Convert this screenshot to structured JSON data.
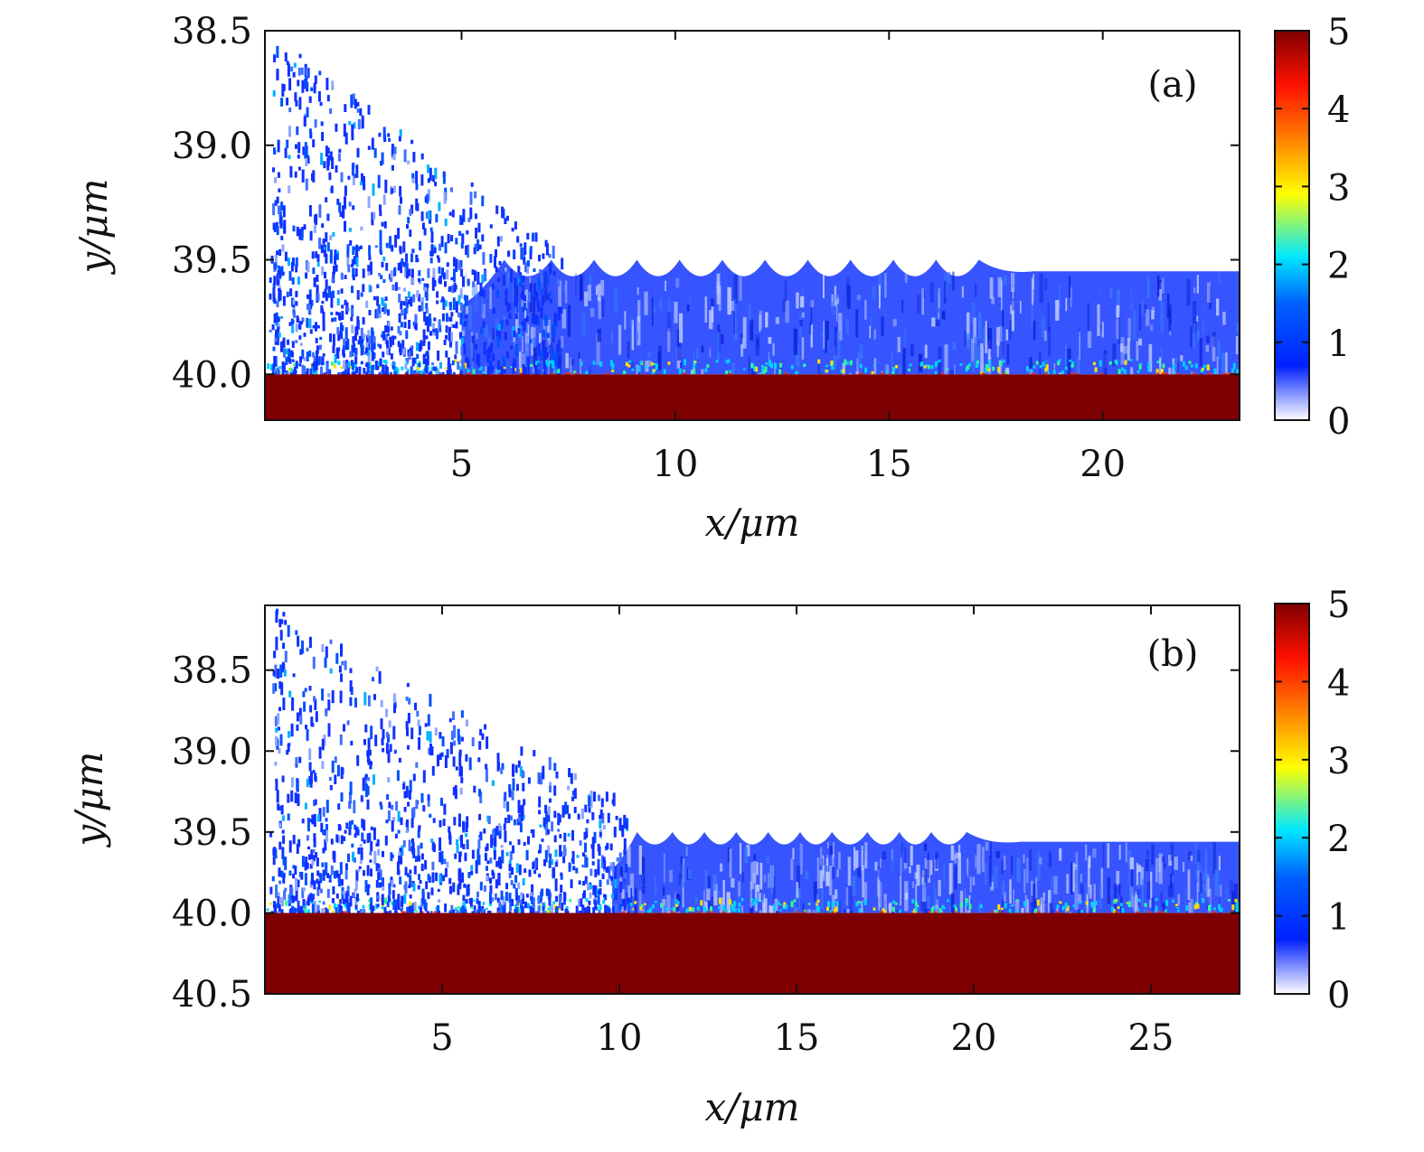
{
  "chart_data": [
    {
      "type": "heatmap",
      "panel_label": "(a)",
      "xlabel": "x/μm",
      "ylabel": "y/μm",
      "xlim": [
        0.4,
        23.2
      ],
      "ylim": [
        38.5,
        40.2
      ],
      "y_inverted": true,
      "x_ticks": [
        "5",
        "10",
        "15",
        "20"
      ],
      "x_tick_values": [
        5,
        10,
        15,
        20
      ],
      "y_ticks": [
        "38.5",
        "39.0",
        "39.5",
        "40.0"
      ],
      "y_tick_values": [
        38.5,
        39.0,
        39.5,
        40.0
      ],
      "surface_y": 40.0,
      "solid_value": 5,
      "plasma_front": {
        "x_start": 5.0,
        "y_top_flat": 39.55,
        "ripple_peaks_x": [
          6.0,
          7.1,
          8.1,
          9.1,
          10.1,
          11.1,
          12.1,
          13.1,
          14.1,
          15.1,
          16.1,
          17.1
        ],
        "ripple_peak_y": 39.5,
        "ripple_trough_y": 39.62
      },
      "colorbar": {
        "min": 0,
        "max": 5,
        "ticks": [
          "0",
          "1",
          "2",
          "3",
          "4",
          "5"
        ],
        "tick_values": [
          0,
          1,
          2,
          3,
          4,
          5
        ],
        "colors": [
          "#ffffff",
          "#0020ff",
          "#00e8ff",
          "#ffff00",
          "#ff2000",
          "#7f0000"
        ]
      }
    },
    {
      "type": "heatmap",
      "panel_label": "(b)",
      "xlabel": "x/μm",
      "ylabel": "y/μm",
      "xlim": [
        0.0,
        27.5
      ],
      "ylim": [
        38.1,
        40.5
      ],
      "y_inverted": true,
      "x_ticks": [
        "5",
        "10",
        "15",
        "20",
        "25"
      ],
      "x_tick_values": [
        5,
        10,
        15,
        20,
        25
      ],
      "y_ticks": [
        "38.5",
        "39.0",
        "39.5",
        "40.0",
        "40.5"
      ],
      "y_tick_values": [
        38.5,
        39.0,
        39.5,
        40.0,
        40.5
      ],
      "surface_y": 40.0,
      "solid_value": 5,
      "plasma_front": {
        "x_start": 9.8,
        "y_top_flat": 39.56,
        "ripple_peaks_x": [
          10.5,
          11.5,
          12.4,
          13.3,
          14.2,
          15.1,
          16.0,
          17.0,
          17.9,
          18.8,
          19.8
        ],
        "ripple_peak_y": 39.5,
        "ripple_trough_y": 39.62
      },
      "colorbar": {
        "min": 0,
        "max": 5,
        "ticks": [
          "0",
          "1",
          "2",
          "3",
          "4",
          "5"
        ],
        "tick_values": [
          0,
          1,
          2,
          3,
          4,
          5
        ],
        "colors": [
          "#ffffff",
          "#0020ff",
          "#00e8ff",
          "#ffff00",
          "#ff2000",
          "#7f0000"
        ]
      }
    }
  ]
}
